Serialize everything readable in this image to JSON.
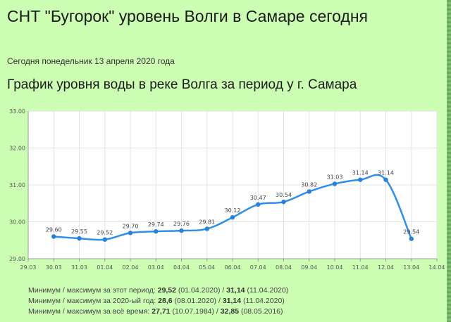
{
  "page": {
    "title": "СНТ \"Бугорок\" уровень Волги в Самаре сегодня",
    "date_line": "Сегодня понедельник 13 апреля 2020 года",
    "chart_heading": "График уровня воды в реке Волга за период у г. Самара"
  },
  "stats": {
    "period": {
      "prefix": "Минимум / максимум за этот период: ",
      "min": "29,52",
      "min_date": " (01.04.2020)",
      "sep": " / ",
      "max": "31,14",
      "max_date": " (11.04.2020)"
    },
    "year": {
      "prefix": "Минимум / максимум за 2020-ый год: ",
      "min": "28,6",
      "min_date": " (08.01.2020)",
      "sep": " / ",
      "max": "31,14",
      "max_date": " (11.04.2020)"
    },
    "all_time": {
      "prefix": "Минимум / максимум  за  всё  время: ",
      "min": "27,71",
      "min_date": " (10.07.1984)",
      "sep": " / ",
      "max": "32,85",
      "max_date": " (08.05.2016)"
    }
  },
  "colors": {
    "line": "#2e8fe8",
    "point": "#2a7fd6",
    "background": "#ccffb3",
    "plot_bg": "#ffffff",
    "grid": "#e3e3e3"
  },
  "chart_data": {
    "type": "line",
    "title": "График уровня воды в реке Волга за период у г. Самара",
    "xlabel": "",
    "ylabel": "",
    "x_ticks": [
      "29.03",
      "30.03",
      "31.03",
      "01.04",
      "02.04",
      "03.04",
      "04.04",
      "05.04",
      "06.04",
      "07.04",
      "08.04",
      "09.04",
      "10.04",
      "11.04",
      "12.04",
      "13.04",
      "14.04"
    ],
    "y_ticks": [
      "29.00",
      "30.00",
      "31.00",
      "32.00",
      "33.00"
    ],
    "ylim": [
      29,
      33
    ],
    "grid": true,
    "series": [
      {
        "x": [
          "30.03",
          "31.03",
          "01.04",
          "02.04",
          "03.04",
          "04.04",
          "05.04",
          "06.04",
          "07.04",
          "08.04",
          "09.04",
          "10.04",
          "11.04",
          "12.04",
          "13.04"
        ],
        "values": [
          29.6,
          29.55,
          29.52,
          29.7,
          29.74,
          29.76,
          29.81,
          30.12,
          30.47,
          30.54,
          30.82,
          31.03,
          31.14,
          31.14,
          29.54
        ],
        "labels": [
          "29.60",
          "29.55",
          "29.52",
          "29.70",
          "29.74",
          "29.76",
          "29.81",
          "30.12",
          "30.47",
          "30.54",
          "30.82",
          "31.03",
          "31.14",
          "31.14",
          "29.54"
        ]
      }
    ]
  }
}
